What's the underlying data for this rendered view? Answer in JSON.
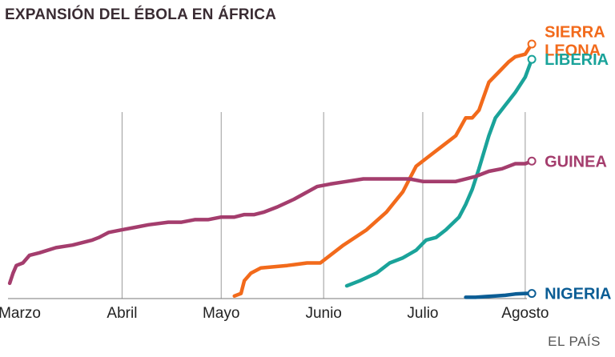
{
  "chart_data": {
    "type": "line",
    "title": "EXPANSIÓN DEL ÉBOLA EN ÁFRICA",
    "source": "EL PAÍS",
    "xlabel": "",
    "ylabel": "",
    "x_unit": "day of year 2014 (approx.)",
    "xlim": [
      75,
      233
    ],
    "ylim": [
      0,
      100
    ],
    "grid": "vertical month lines",
    "categories": [
      "Marzo",
      "Abril",
      "Mayo",
      "Junio",
      "Julio",
      "Agosto"
    ],
    "month_ticks": [
      {
        "label": "Marzo",
        "day": 79
      },
      {
        "label": "Abril",
        "day": 110
      },
      {
        "label": "Mayo",
        "day": 140
      },
      {
        "label": "Junio",
        "day": 171
      },
      {
        "label": "Julio",
        "day": 201
      },
      {
        "label": "Agosto",
        "day": 232
      }
    ],
    "series": [
      {
        "name": "SIERRA LEONA",
        "label_lines": [
          "SIERRA",
          "LEONA"
        ],
        "color": "#f26a1b",
        "x": [
          144,
          146,
          147,
          149,
          152,
          156,
          160,
          163,
          166,
          170,
          177,
          184,
          190,
          195,
          197,
          199,
          203,
          207,
          211,
          214,
          216,
          218,
          221,
          224,
          227,
          229,
          232,
          234
        ],
        "y": [
          1,
          2,
          7,
          10,
          12,
          12.5,
          13,
          13.5,
          14,
          14,
          21,
          27,
          34,
          42,
          47,
          52,
          56,
          60,
          64,
          71,
          71,
          74,
          85,
          89,
          93,
          95,
          96,
          100
        ]
      },
      {
        "name": "LIBERIA",
        "label_lines": [
          "LIBERIA"
        ],
        "color": "#1aa39a",
        "x": [
          178,
          182,
          187,
          191,
          195,
          199,
          202,
          205,
          208,
          212,
          214,
          216,
          218,
          221,
          223,
          226,
          229,
          232,
          234
        ],
        "y": [
          5,
          7,
          10,
          14,
          16,
          19,
          23,
          24,
          27,
          32,
          37,
          43,
          51,
          64,
          71,
          76,
          81,
          87,
          94
        ]
      },
      {
        "name": "GUINEA",
        "label_lines": [
          "GUINEA"
        ],
        "color": "#a43d6d",
        "x": [
          76,
          77,
          78,
          80,
          82,
          85,
          90,
          95,
          101,
          103,
          106,
          110,
          114,
          118,
          124,
          128,
          132,
          136,
          140,
          144,
          147,
          150,
          153,
          157,
          162,
          169,
          173,
          178,
          183,
          188,
          193,
          197,
          201,
          205,
          211,
          217,
          221,
          225,
          229,
          232,
          234
        ],
        "y": [
          6,
          10,
          13,
          14,
          17,
          18,
          20,
          21,
          23,
          24,
          26,
          27,
          28,
          29,
          30,
          30,
          31,
          31,
          32,
          32,
          33,
          33,
          34,
          36,
          39,
          44,
          45,
          46,
          47,
          47,
          47,
          47,
          46,
          46,
          46,
          48,
          50,
          51,
          53,
          53,
          54
        ]
      },
      {
        "name": "NIGERIA",
        "label_lines": [
          "NIGERIA"
        ],
        "color": "#0b5d95",
        "x": [
          214,
          217,
          220,
          223,
          226,
          229,
          232,
          234
        ],
        "y": [
          0.5,
          0.5,
          0.8,
          1.0,
          1.3,
          1.8,
          2.0,
          2.0
        ]
      }
    ]
  }
}
